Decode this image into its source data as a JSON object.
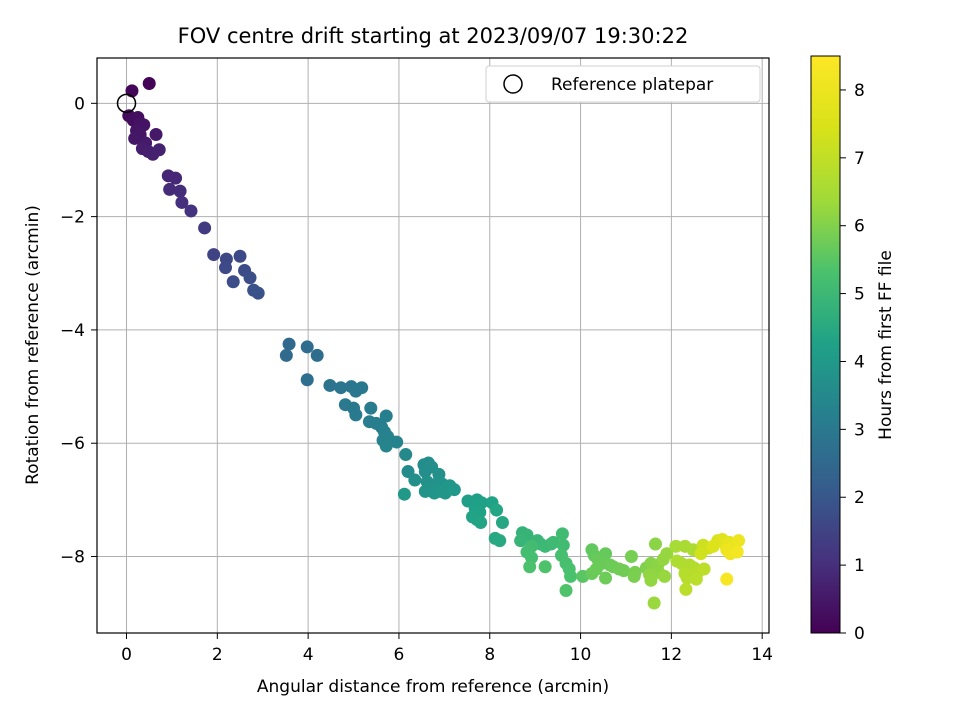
{
  "chart_data": {
    "type": "scatter",
    "title": "FOV centre drift starting at 2023/09/07 19:30:22",
    "xlabel": "Angular distance from reference (arcmin)",
    "ylabel": "Rotation from reference (arcmin)",
    "xlim": [
      -0.65,
      14.15
    ],
    "ylim": [
      -9.35,
      0.8
    ],
    "xticks": [
      0,
      2,
      4,
      6,
      8,
      10,
      12,
      14
    ],
    "yticks": [
      0,
      -2,
      -4,
      -6,
      -8
    ],
    "xtick_labels": [
      "0",
      "2",
      "4",
      "6",
      "8",
      "10",
      "12",
      "14"
    ],
    "ytick_labels": [
      "0",
      "−2",
      "−4",
      "−6",
      "−8"
    ],
    "grid": true,
    "legend": {
      "placement": "top-right",
      "entries": [
        {
          "label": "Reference platepar",
          "marker": "open-circle",
          "x": 0,
          "y": 0
        }
      ]
    },
    "colorbar": {
      "label": "Hours from first FF file",
      "colormap": "viridis",
      "range": [
        0,
        8.5
      ],
      "ticks": [
        0,
        1,
        2,
        3,
        4,
        5,
        6,
        7,
        8
      ],
      "tick_labels": [
        "0",
        "1",
        "2",
        "3",
        "4",
        "5",
        "6",
        "7",
        "8"
      ]
    },
    "series": [
      {
        "points": [
          [
            0.5,
            0.35,
            0.05
          ],
          [
            0.12,
            0.22,
            0.1
          ],
          [
            0.05,
            -0.22,
            0.2
          ],
          [
            0.15,
            -0.3,
            0.25
          ],
          [
            0.25,
            -0.25,
            0.3
          ],
          [
            0.3,
            -0.35,
            0.35
          ],
          [
            0.38,
            -0.38,
            0.4
          ],
          [
            0.22,
            -0.48,
            0.42
          ],
          [
            0.3,
            -0.55,
            0.45
          ],
          [
            0.18,
            -0.62,
            0.48
          ],
          [
            0.65,
            -0.55,
            0.5
          ],
          [
            0.42,
            -0.7,
            0.55
          ],
          [
            0.35,
            -0.8,
            0.6
          ],
          [
            0.48,
            -0.85,
            0.65
          ],
          [
            0.58,
            -0.9,
            0.68
          ],
          [
            0.72,
            -0.82,
            0.72
          ],
          [
            0.92,
            -1.28,
            0.8
          ],
          [
            1.08,
            -1.32,
            0.85
          ],
          [
            0.95,
            -1.52,
            0.9
          ],
          [
            1.18,
            -1.55,
            0.95
          ],
          [
            1.22,
            -1.75,
            1.0
          ],
          [
            1.42,
            -1.9,
            1.1
          ],
          [
            1.72,
            -2.2,
            1.3
          ],
          [
            1.92,
            -2.67,
            1.5
          ],
          [
            2.2,
            -2.75,
            1.6
          ],
          [
            2.5,
            -2.7,
            1.65
          ],
          [
            2.18,
            -2.9,
            1.68
          ],
          [
            2.6,
            -2.95,
            1.72
          ],
          [
            2.72,
            -3.08,
            1.78
          ],
          [
            2.35,
            -3.15,
            1.75
          ],
          [
            2.8,
            -3.3,
            1.85
          ],
          [
            2.9,
            -3.35,
            1.9
          ],
          [
            3.58,
            -4.25,
            2.5
          ],
          [
            3.52,
            -4.45,
            2.55
          ],
          [
            3.98,
            -4.3,
            2.6
          ],
          [
            4.2,
            -4.45,
            2.65
          ],
          [
            3.98,
            -4.88,
            2.7
          ],
          [
            4.48,
            -4.98,
            2.85
          ],
          [
            4.72,
            -5.02,
            2.9
          ],
          [
            4.95,
            -5.0,
            2.92
          ],
          [
            5.05,
            -5.08,
            2.95
          ],
          [
            5.18,
            -5.02,
            2.97
          ],
          [
            4.82,
            -5.32,
            3.0
          ],
          [
            5.0,
            -5.38,
            3.02
          ],
          [
            5.05,
            -5.5,
            3.05
          ],
          [
            5.38,
            -5.38,
            3.1
          ],
          [
            5.35,
            -5.62,
            3.12
          ],
          [
            5.5,
            -5.65,
            3.15
          ],
          [
            5.62,
            -5.72,
            3.18
          ],
          [
            5.72,
            -5.52,
            3.2
          ],
          [
            5.68,
            -5.8,
            3.22
          ],
          [
            5.75,
            -5.88,
            3.25
          ],
          [
            5.65,
            -5.95,
            3.28
          ],
          [
            5.82,
            -5.96,
            3.3
          ],
          [
            5.95,
            -5.98,
            3.32
          ],
          [
            5.72,
            -6.05,
            3.35
          ],
          [
            6.15,
            -6.2,
            3.5
          ],
          [
            6.55,
            -6.38,
            3.6
          ],
          [
            6.65,
            -6.35,
            3.62
          ],
          [
            6.72,
            -6.42,
            3.65
          ],
          [
            6.2,
            -6.5,
            3.55
          ],
          [
            6.58,
            -6.5,
            3.67
          ],
          [
            6.35,
            -6.65,
            3.7
          ],
          [
            6.88,
            -6.55,
            3.72
          ],
          [
            6.62,
            -6.68,
            3.75
          ],
          [
            6.82,
            -6.72,
            3.78
          ],
          [
            6.95,
            -6.72,
            3.8
          ],
          [
            6.7,
            -6.8,
            3.82
          ],
          [
            6.58,
            -6.85,
            3.85
          ],
          [
            6.78,
            -6.88,
            3.87
          ],
          [
            6.92,
            -6.85,
            3.9
          ],
          [
            7.02,
            -6.88,
            3.92
          ],
          [
            7.12,
            -6.75,
            3.95
          ],
          [
            7.22,
            -6.82,
            3.97
          ],
          [
            6.12,
            -6.9,
            4.0
          ],
          [
            7.52,
            -7.02,
            4.15
          ],
          [
            7.72,
            -7.0,
            4.2
          ],
          [
            7.82,
            -7.05,
            4.22
          ],
          [
            7.68,
            -7.15,
            4.25
          ],
          [
            7.78,
            -7.22,
            4.27
          ],
          [
            7.62,
            -7.3,
            4.3
          ],
          [
            7.72,
            -7.35,
            4.32
          ],
          [
            7.8,
            -7.4,
            4.35
          ],
          [
            8.05,
            -7.05,
            4.28
          ],
          [
            8.15,
            -7.18,
            4.38
          ],
          [
            8.28,
            -7.4,
            4.42
          ],
          [
            8.12,
            -7.68,
            4.45
          ],
          [
            8.22,
            -7.72,
            4.5
          ],
          [
            8.72,
            -7.58,
            4.8
          ],
          [
            8.82,
            -7.62,
            4.85
          ],
          [
            8.68,
            -7.72,
            4.88
          ],
          [
            9.05,
            -7.72,
            4.92
          ],
          [
            9.12,
            -7.78,
            4.95
          ],
          [
            9.22,
            -7.82,
            5.0
          ],
          [
            9.35,
            -7.78,
            5.02
          ],
          [
            9.4,
            -7.75,
            5.05
          ],
          [
            9.6,
            -7.6,
            5.1
          ],
          [
            9.62,
            -7.8,
            5.12
          ],
          [
            8.92,
            -7.82,
            5.15
          ],
          [
            8.82,
            -7.92,
            5.18
          ],
          [
            8.92,
            -8.02,
            5.2
          ],
          [
            9.58,
            -7.98,
            5.22
          ],
          [
            9.68,
            -8.12,
            5.25
          ],
          [
            9.75,
            -8.22,
            5.28
          ],
          [
            9.78,
            -8.35,
            5.3
          ],
          [
            8.88,
            -8.18,
            5.32
          ],
          [
            9.22,
            -8.18,
            5.35
          ],
          [
            9.68,
            -8.6,
            5.38
          ],
          [
            10.05,
            -8.35,
            5.5
          ],
          [
            10.25,
            -7.88,
            5.6
          ],
          [
            10.3,
            -7.98,
            5.62
          ],
          [
            10.55,
            -7.95,
            5.65
          ],
          [
            10.38,
            -8.05,
            5.68
          ],
          [
            10.48,
            -8.12,
            5.7
          ],
          [
            10.65,
            -8.15,
            5.72
          ],
          [
            10.72,
            -8.18,
            5.75
          ],
          [
            10.85,
            -8.22,
            5.78
          ],
          [
            10.95,
            -8.25,
            5.8
          ],
          [
            11.12,
            -8.0,
            5.85
          ],
          [
            11.2,
            -8.28,
            5.88
          ],
          [
            11.18,
            -8.35,
            5.9
          ],
          [
            11.45,
            -8.2,
            5.95
          ],
          [
            10.25,
            -8.3,
            5.7
          ],
          [
            10.35,
            -8.22,
            5.72
          ],
          [
            10.55,
            -8.38,
            5.75
          ],
          [
            11.55,
            -8.12,
            6.05
          ],
          [
            11.65,
            -7.78,
            6.1
          ],
          [
            11.7,
            -8.15,
            6.12
          ],
          [
            11.72,
            -8.28,
            6.15
          ],
          [
            11.52,
            -8.32,
            6.18
          ],
          [
            11.55,
            -8.42,
            6.2
          ],
          [
            11.82,
            -8.05,
            6.22
          ],
          [
            11.9,
            -7.95,
            6.25
          ],
          [
            11.85,
            -8.35,
            6.28
          ],
          [
            11.62,
            -8.82,
            6.3
          ],
          [
            12.1,
            -7.82,
            6.5
          ],
          [
            12.3,
            -7.82,
            6.55
          ],
          [
            12.48,
            -7.88,
            6.6
          ],
          [
            12.12,
            -8.08,
            6.62
          ],
          [
            12.22,
            -8.12,
            6.65
          ],
          [
            12.3,
            -8.18,
            6.68
          ],
          [
            12.4,
            -8.15,
            6.7
          ],
          [
            12.5,
            -8.2,
            6.72
          ],
          [
            12.3,
            -8.3,
            6.75
          ],
          [
            12.45,
            -8.32,
            6.78
          ],
          [
            12.58,
            -8.28,
            6.8
          ],
          [
            12.35,
            -8.38,
            6.82
          ],
          [
            12.55,
            -8.4,
            6.85
          ],
          [
            12.32,
            -8.58,
            6.88
          ],
          [
            12.72,
            -8.22,
            6.9
          ],
          [
            12.7,
            -7.8,
            7.2
          ],
          [
            12.82,
            -7.85,
            7.25
          ],
          [
            12.65,
            -7.95,
            7.28
          ],
          [
            13.02,
            -7.72,
            7.5
          ],
          [
            13.12,
            -7.7,
            7.6
          ],
          [
            12.92,
            -7.82,
            7.55
          ],
          [
            13.18,
            -7.78,
            7.7
          ],
          [
            13.28,
            -7.75,
            7.8
          ],
          [
            13.38,
            -7.8,
            7.9
          ],
          [
            13.48,
            -7.72,
            8.0
          ],
          [
            13.22,
            -7.88,
            8.05
          ],
          [
            13.3,
            -7.95,
            8.1
          ],
          [
            13.45,
            -7.92,
            8.2
          ],
          [
            13.22,
            -8.4,
            8.3
          ]
        ]
      }
    ]
  }
}
